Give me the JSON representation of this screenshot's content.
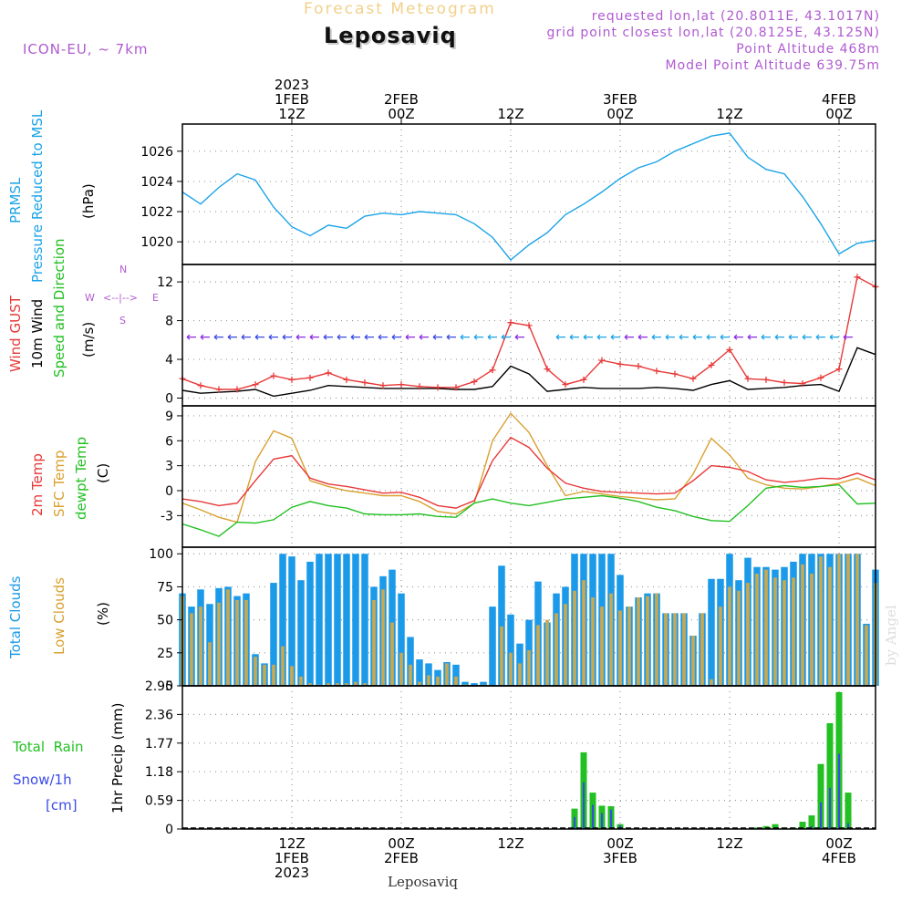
{
  "header": {
    "faint_title": "Forecast Meteogram",
    "station": "Leposaviq",
    "model": "ICON-EU, ~ 7km",
    "requested": "requested lon,lat (20.8011E, 43.1017N)",
    "gridpoint": "grid point closest lon,lat (20.8125E, 43.125N)",
    "altitude": "Point Altitude 468m",
    "model_altitude": "Model Point Altitude 639.75m",
    "footer_station": "Leposaviq",
    "watermark": "by Angel"
  },
  "time_axis": {
    "top_labels": [
      {
        "t": 12,
        "lines": [
          "2023",
          "1FEB",
          "12Z"
        ]
      },
      {
        "t": 24,
        "lines": [
          "2FEB",
          "00Z"
        ]
      },
      {
        "t": 36,
        "lines": [
          "12Z"
        ]
      },
      {
        "t": 48,
        "lines": [
          "3FEB",
          "00Z"
        ]
      },
      {
        "t": 60,
        "lines": [
          "12Z"
        ]
      },
      {
        "t": 72,
        "lines": [
          "4FEB",
          "00Z"
        ]
      }
    ],
    "bottom_labels": [
      {
        "t": 12,
        "lines": [
          "12Z",
          "1FEB",
          "2023"
        ]
      },
      {
        "t": 24,
        "lines": [
          "00Z",
          "2FEB"
        ]
      },
      {
        "t": 36,
        "lines": [
          "12Z"
        ]
      },
      {
        "t": 48,
        "lines": [
          "00Z",
          "3FEB"
        ]
      },
      {
        "t": 60,
        "lines": [
          "12Z"
        ]
      },
      {
        "t": 72,
        "lines": [
          "00Z",
          "4FEB"
        ]
      }
    ],
    "range_hours": [
      0,
      76
    ],
    "gridline_hours": [
      12,
      24,
      36,
      48,
      60,
      72
    ]
  },
  "panel_labels": {
    "pressure": {
      "line1": "PRMSL",
      "line2": "Pressure Reduced to MSL",
      "unit": "(hPa)"
    },
    "wind": {
      "gust": "Wind GUST",
      "wind10m": "10m Wind",
      "speed_dir": "Speed and Direction",
      "unit": "(m/s)",
      "compass_n": "N",
      "compass_s": "S",
      "compass_w": "W",
      "compass_e": "E",
      "compass_h": "<--|-->"
    },
    "temp": {
      "t2m": "2m Temp",
      "sfc": "SFC Temp",
      "dewpt": "dewpt Temp",
      "unit": "(C)"
    },
    "clouds": {
      "total": "Total Clouds",
      "low": "Low Clouds",
      "unit": "(%)"
    },
    "precip": {
      "rain": "Total  Rain",
      "snow": "Snow/1h",
      "snow_unit": "[cm]",
      "axis": "1hr Precip (mm)"
    }
  },
  "colors": {
    "pressure": "#1aa3e8",
    "gust": "#e83838",
    "wind": "#000000",
    "t2m": "#e83838",
    "sfc": "#d9a030",
    "dewpt": "#22c022",
    "total_clouds": "#1a9ae8",
    "low_clouds": "#c8a850",
    "rain": "#22c022",
    "snow": "#3a4ae8",
    "purple": "#b05ad0"
  },
  "chart_data": [
    {
      "type": "line",
      "title": "PRMSL Pressure Reduced to MSL",
      "ylabel": "(hPa)",
      "ylim": [
        1018.5,
        1027.8
      ],
      "yticks": [
        1020,
        1022,
        1024,
        1026
      ],
      "x_hours": [
        0,
        2,
        4,
        6,
        8,
        10,
        12,
        14,
        16,
        18,
        20,
        22,
        24,
        26,
        28,
        30,
        32,
        34,
        36,
        38,
        40,
        42,
        44,
        46,
        48,
        50,
        52,
        54,
        56,
        58,
        60,
        62,
        64,
        66,
        68,
        70,
        72,
        74,
        76
      ],
      "values": [
        1023.3,
        1022.5,
        1023.6,
        1024.5,
        1024.1,
        1022.3,
        1021.0,
        1020.4,
        1021.1,
        1020.9,
        1021.7,
        1021.9,
        1021.8,
        1022.0,
        1021.9,
        1021.8,
        1021.2,
        1020.3,
        1018.8,
        1019.8,
        1020.6,
        1021.8,
        1022.5,
        1023.3,
        1024.2,
        1024.9,
        1025.3,
        1026.0,
        1026.5,
        1027.0,
        1027.2,
        1025.6,
        1024.8,
        1024.5,
        1023.0,
        1021.2,
        1019.2,
        1019.9,
        1020.1
      ]
    },
    {
      "type": "line",
      "title": "Wind GUST / 10m Wind Speed",
      "ylabel": "(m/s)",
      "ylim": [
        -0.8,
        13.8
      ],
      "yticks": [
        0,
        4,
        8,
        12
      ],
      "x_hours": [
        0,
        2,
        4,
        6,
        8,
        10,
        12,
        14,
        16,
        18,
        20,
        22,
        24,
        26,
        28,
        30,
        32,
        34,
        36,
        38,
        40,
        42,
        44,
        46,
        48,
        50,
        52,
        54,
        56,
        58,
        60,
        62,
        64,
        66,
        68,
        70,
        72,
        74,
        76
      ],
      "series": [
        {
          "name": "Wind GUST",
          "values": [
            2.0,
            1.3,
            0.9,
            0.9,
            1.4,
            2.3,
            1.9,
            2.1,
            2.6,
            1.9,
            1.6,
            1.3,
            1.4,
            1.2,
            1.1,
            1.1,
            1.7,
            2.9,
            7.8,
            7.5,
            3.0,
            1.4,
            1.9,
            3.9,
            3.5,
            3.3,
            2.8,
            2.5,
            2.0,
            3.4,
            5.0,
            2.0,
            1.9,
            1.6,
            1.5,
            2.1,
            3.0,
            12.5,
            11.5
          ]
        },
        {
          "name": "10m Wind",
          "values": [
            0.8,
            0.5,
            0.6,
            0.7,
            0.9,
            0.2,
            0.5,
            0.8,
            1.3,
            1.2,
            1.1,
            1.0,
            1.0,
            1.0,
            1.0,
            0.9,
            0.9,
            1.2,
            3.3,
            2.5,
            0.7,
            0.9,
            1.1,
            1.0,
            1.0,
            1.0,
            1.1,
            1.0,
            0.8,
            1.4,
            1.8,
            0.9,
            1.0,
            1.1,
            1.3,
            1.4,
            0.7,
            5.2,
            4.5
          ]
        }
      ]
    },
    {
      "type": "line",
      "title": "2m Temp / SFC Temp / dewpt Temp",
      "ylabel": "(C)",
      "ylim": [
        -6.8,
        10.2
      ],
      "yticks": [
        -3,
        0,
        3,
        6,
        9
      ],
      "x_hours": [
        0,
        2,
        4,
        6,
        8,
        10,
        12,
        14,
        16,
        18,
        20,
        22,
        24,
        26,
        28,
        30,
        32,
        34,
        36,
        38,
        40,
        42,
        44,
        46,
        48,
        50,
        52,
        54,
        56,
        58,
        60,
        62,
        64,
        66,
        68,
        70,
        72,
        74,
        76
      ],
      "series": [
        {
          "name": "2m Temp",
          "values": [
            -1.0,
            -1.3,
            -1.8,
            -1.5,
            1.2,
            3.8,
            4.2,
            1.5,
            0.8,
            0.5,
            0.1,
            -0.3,
            -0.2,
            -0.8,
            -1.8,
            -2.1,
            -1.2,
            3.6,
            6.4,
            5.2,
            2.7,
            0.9,
            0.3,
            -0.1,
            -0.2,
            -0.3,
            -0.4,
            -0.3,
            1.2,
            3.0,
            2.8,
            2.3,
            1.3,
            1.0,
            1.2,
            1.5,
            1.4,
            2.1,
            1.3
          ]
        },
        {
          "name": "SFC Temp",
          "values": [
            -1.5,
            -2.3,
            -3.2,
            -3.8,
            3.5,
            7.2,
            6.3,
            1.2,
            0.5,
            0.0,
            -0.3,
            -0.6,
            -0.6,
            -1.3,
            -2.5,
            -2.8,
            -1.5,
            6.0,
            9.3,
            7.0,
            3.0,
            -0.6,
            -0.1,
            -0.4,
            -0.7,
            -0.9,
            -1.1,
            -1.0,
            2.0,
            6.3,
            4.3,
            1.5,
            0.7,
            0.3,
            0.2,
            0.5,
            0.9,
            1.5,
            0.6
          ]
        },
        {
          "name": "dewpt Temp",
          "values": [
            -4.0,
            -4.7,
            -5.5,
            -3.8,
            -3.9,
            -3.5,
            -2.0,
            -1.3,
            -1.8,
            -2.1,
            -2.8,
            -2.9,
            -2.9,
            -2.8,
            -3.1,
            -3.2,
            -1.5,
            -1.0,
            -1.5,
            -1.8,
            -1.4,
            -1.0,
            -0.8,
            -0.6,
            -0.9,
            -1.3,
            -2.0,
            -2.4,
            -3.1,
            -3.6,
            -3.7,
            -1.8,
            0.3,
            0.6,
            0.4,
            0.5,
            0.7,
            -1.6,
            -1.5
          ]
        }
      ]
    },
    {
      "type": "bar",
      "title": "Total Clouds / Low Clouds",
      "ylabel": "(%)",
      "ylim": [
        0,
        105
      ],
      "yticks": [
        0,
        25,
        50,
        75,
        100
      ],
      "x_hours": [
        0,
        1,
        2,
        3,
        4,
        5,
        6,
        7,
        8,
        9,
        10,
        11,
        12,
        13,
        14,
        15,
        16,
        17,
        18,
        19,
        20,
        21,
        22,
        23,
        24,
        25,
        26,
        27,
        28,
        29,
        30,
        31,
        32,
        33,
        34,
        35,
        36,
        37,
        38,
        39,
        40,
        41,
        42,
        43,
        44,
        45,
        46,
        47,
        48,
        49,
        50,
        51,
        52,
        53,
        54,
        55,
        56,
        57,
        58,
        59,
        60,
        61,
        62,
        63,
        64,
        65,
        66,
        67,
        68,
        69,
        70,
        71,
        72,
        73,
        74,
        75,
        76
      ],
      "series": [
        {
          "name": "Total Clouds",
          "values": [
            70,
            60,
            73,
            62,
            74,
            75,
            68,
            70,
            24,
            17,
            78,
            100,
            98,
            80,
            94,
            100,
            100,
            100,
            100,
            100,
            100,
            75,
            83,
            88,
            70,
            37,
            20,
            17,
            12,
            18,
            16,
            3,
            2,
            3,
            60,
            91,
            54,
            32,
            50,
            79,
            48,
            70,
            75,
            100,
            100,
            100,
            100,
            100,
            84,
            60,
            67,
            70,
            70,
            55,
            55,
            55,
            38,
            55,
            81,
            81,
            100,
            80,
            97,
            90,
            90,
            88,
            90,
            94,
            100,
            100,
            100,
            100,
            100,
            100,
            100,
            47,
            88
          ]
        },
        {
          "name": "Low Clouds",
          "values": [
            68,
            55,
            60,
            33,
            63,
            73,
            65,
            65,
            22,
            16,
            16,
            30,
            15,
            7,
            2,
            1,
            2,
            2,
            2,
            3,
            2,
            65,
            73,
            48,
            25,
            16,
            3,
            8,
            7,
            17,
            7,
            1,
            0,
            1,
            0,
            45,
            25,
            17,
            27,
            46,
            50,
            55,
            62,
            72,
            80,
            67,
            60,
            70,
            57,
            60,
            67,
            68,
            70,
            55,
            55,
            55,
            38,
            55,
            5,
            60,
            75,
            72,
            78,
            85,
            88,
            82,
            80,
            82,
            92,
            85,
            98,
            90,
            100,
            100,
            100,
            46,
            78
          ]
        }
      ]
    },
    {
      "type": "bar",
      "title": "Total Rain / Snow 1h",
      "ylabel": "1hr Precip (mm)",
      "ylim": [
        0,
        2.95
      ],
      "yticks": [
        0,
        0.59,
        1.18,
        1.77,
        2.36,
        2.95
      ],
      "x_hours": [
        0,
        1,
        2,
        3,
        4,
        5,
        6,
        7,
        8,
        9,
        10,
        11,
        12,
        13,
        14,
        15,
        16,
        17,
        18,
        19,
        20,
        21,
        22,
        23,
        24,
        25,
        26,
        27,
        28,
        29,
        30,
        31,
        32,
        33,
        34,
        35,
        36,
        37,
        38,
        39,
        40,
        41,
        42,
        43,
        44,
        45,
        46,
        47,
        48,
        49,
        50,
        51,
        52,
        53,
        54,
        55,
        56,
        57,
        58,
        59,
        60,
        61,
        62,
        63,
        64,
        65,
        66,
        67,
        68,
        69,
        70,
        71,
        72,
        73,
        74,
        75,
        76
      ],
      "series": [
        {
          "name": "Total Rain",
          "values": [
            0,
            0,
            0,
            0,
            0,
            0,
            0,
            0,
            0,
            0,
            0,
            0,
            0,
            0,
            0,
            0,
            0,
            0,
            0,
            0,
            0,
            0,
            0,
            0,
            0,
            0,
            0,
            0,
            0,
            0,
            0,
            0,
            0,
            0,
            0,
            0,
            0,
            0,
            0,
            0,
            0,
            0,
            0,
            0.42,
            1.58,
            0.75,
            0.48,
            0.47,
            0.1,
            0,
            0,
            0,
            0,
            0,
            0,
            0,
            0,
            0,
            0,
            0,
            0,
            0,
            0,
            0.03,
            0.06,
            0.1,
            0.03,
            0.03,
            0.15,
            0.28,
            1.34,
            2.18,
            2.82,
            0.75,
            0,
            0,
            0
          ]
        },
        {
          "name": "Snow 1h",
          "values": [
            0,
            0,
            0,
            0,
            0,
            0,
            0,
            0,
            0,
            0,
            0,
            0,
            0,
            0,
            0,
            0,
            0,
            0,
            0,
            0,
            0,
            0,
            0,
            0,
            0,
            0,
            0,
            0,
            0,
            0,
            0,
            0,
            0,
            0,
            0,
            0,
            0,
            0,
            0,
            0,
            0,
            0,
            0,
            0.25,
            0.96,
            0.5,
            0.33,
            0.4,
            0.08,
            0,
            0,
            0,
            0,
            0,
            0,
            0,
            0,
            0,
            0,
            0,
            0,
            0,
            0,
            0,
            0,
            0,
            0,
            0,
            0,
            0.06,
            0.55,
            0.85,
            1.55,
            0.12,
            0,
            0,
            0
          ]
        }
      ]
    }
  ]
}
